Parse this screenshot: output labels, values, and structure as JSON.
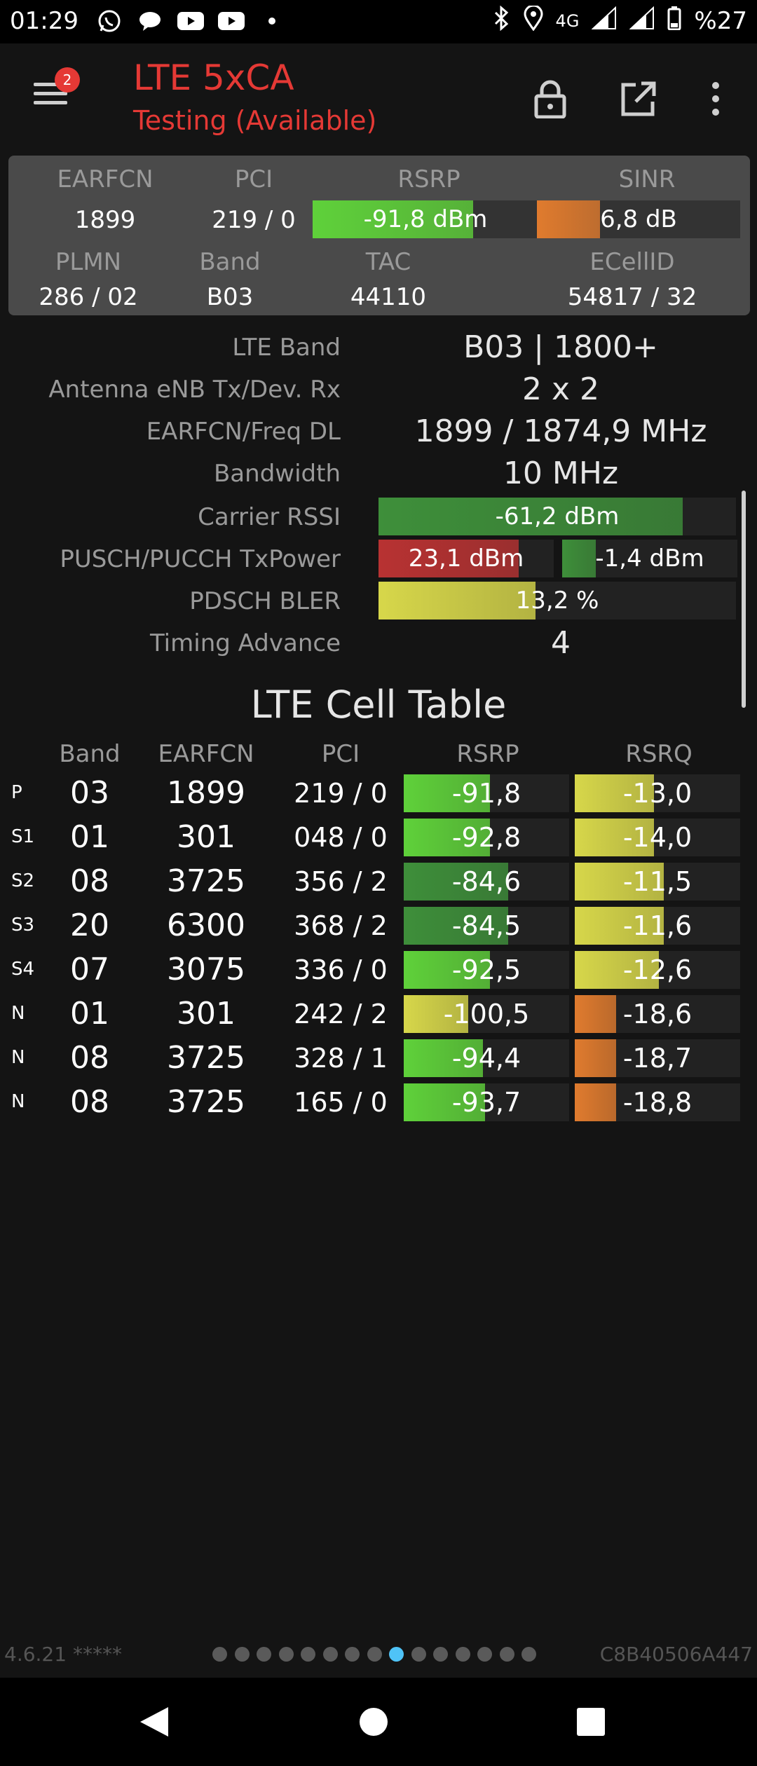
{
  "status_bar": {
    "time": "01:29",
    "network": "4G",
    "battery": "%27",
    "notification_icons": [
      "whatsapp-icon",
      "chat-bubble-icon",
      "youtube-icon",
      "youtube-icon",
      "more-notifications-dot"
    ],
    "system_icons": [
      "bluetooth-icon",
      "location-icon",
      "signal-icon",
      "signal-icon",
      "battery-icon"
    ]
  },
  "app_bar": {
    "title": "LTE 5xCA",
    "subtitle": "Testing (Available)",
    "badge": "2",
    "icons": [
      "menu-icon",
      "lock-icon",
      "open-external-icon",
      "more-vert-icon"
    ],
    "accent": "#e53935"
  },
  "summary": {
    "headers": [
      "EARFCN",
      "PCI",
      "RSRP",
      "SINR"
    ],
    "earfcn": "1899",
    "pci": "219 / 0",
    "rsrp": {
      "text": "-91,8 dBm",
      "level": 0.71,
      "color": "#5fd13a"
    },
    "sinr": {
      "text": "6,8 dB",
      "level": 0.31,
      "color": "#e07b2e"
    },
    "headers2": [
      "PLMN",
      "Band",
      "TAC",
      "ECellID"
    ],
    "plmn": "286 / 02",
    "band": "B03",
    "tac": "44110",
    "ecellid": "54817 / 32"
  },
  "details": [
    {
      "label": "LTE Band",
      "value": "B03 | 1800+"
    },
    {
      "label": "Antenna eNB Tx/Dev. Rx",
      "value": "2 x 2"
    },
    {
      "label": "EARFCN/Freq DL",
      "value": "1899 / 1874,9 MHz"
    },
    {
      "label": "Bandwidth",
      "value": "10 MHz"
    },
    {
      "label": "Carrier RSSI",
      "bar": {
        "text": "-61,2 dBm",
        "level": 0.85,
        "color": "#3e8f3a"
      }
    },
    {
      "label": "PUSCH/PUCCH TxPower",
      "bar": {
        "text": "23,1 dBm",
        "level": 0.8,
        "color": "#b83232"
      },
      "bar2": {
        "text": "-1,4 dBm",
        "level": 0.19,
        "color": "#3e8f3a"
      }
    },
    {
      "label": "PDSCH BLER",
      "bar": {
        "text": "13,2 %",
        "level": 0.44,
        "color": "#d7d74a"
      }
    },
    {
      "label": "Timing Advance",
      "value": "4"
    }
  ],
  "cell_table": {
    "title": "LTE Cell Table",
    "columns": [
      "Band",
      "EARFCN",
      "PCI",
      "RSRP",
      "RSRQ"
    ],
    "rows": [
      {
        "type": "P",
        "band": "03",
        "earfcn": "1899",
        "pci": "219 / 0",
        "rsrp": "-91,8",
        "rsrp_level": 0.52,
        "rsrp_color": "#5fd13a",
        "rsrq": "-13,0",
        "rsrq_level": 0.48,
        "rsrq_color": "#d7d74a"
      },
      {
        "type": "S1",
        "band": "01",
        "earfcn": "301",
        "pci": "048 / 0",
        "rsrp": "-92,8",
        "rsrp_level": 0.52,
        "rsrp_color": "#5fd13a",
        "rsrq": "-14,0",
        "rsrq_level": 0.48,
        "rsrq_color": "#d7d74a"
      },
      {
        "type": "S2",
        "band": "08",
        "earfcn": "3725",
        "pci": "356 / 2",
        "rsrp": "-84,6",
        "rsrp_level": 0.63,
        "rsrp_color": "#3e8f3a",
        "rsrq": "-11,5",
        "rsrq_level": 0.54,
        "rsrq_color": "#d7d74a"
      },
      {
        "type": "S3",
        "band": "20",
        "earfcn": "6300",
        "pci": "368 / 2",
        "rsrp": "-84,5",
        "rsrp_level": 0.63,
        "rsrp_color": "#3e8f3a",
        "rsrq": "-11,6",
        "rsrq_level": 0.54,
        "rsrq_color": "#d7d74a"
      },
      {
        "type": "S4",
        "band": "07",
        "earfcn": "3075",
        "pci": "336 / 0",
        "rsrp": "-92,5",
        "rsrp_level": 0.52,
        "rsrp_color": "#5fd13a",
        "rsrq": "-12,6",
        "rsrq_level": 0.51,
        "rsrq_color": "#d7d74a"
      },
      {
        "type": "N",
        "band": "01",
        "earfcn": "301",
        "pci": "242 / 2",
        "rsrp": "-100,5",
        "rsrp_level": 0.39,
        "rsrp_color": "#d7d74a",
        "rsrq": "-18,6",
        "rsrq_level": 0.25,
        "rsrq_color": "#e07b2e"
      },
      {
        "type": "N",
        "band": "08",
        "earfcn": "3725",
        "pci": "328 / 1",
        "rsrp": "-94,4",
        "rsrp_level": 0.48,
        "rsrp_color": "#5fd13a",
        "rsrq": "-18,7",
        "rsrq_level": 0.25,
        "rsrq_color": "#e07b2e"
      },
      {
        "type": "N",
        "band": "08",
        "earfcn": "3725",
        "pci": "165 / 0",
        "rsrp": "-93,7",
        "rsrp_level": 0.49,
        "rsrp_color": "#5fd13a",
        "rsrq": "-18,8",
        "rsrq_level": 0.25,
        "rsrq_color": "#e07b2e"
      }
    ]
  },
  "footer": {
    "version": "4.6.21 *****",
    "serial": "C8B40506A447",
    "page_count": 15,
    "active_page": 8
  },
  "nav_bar": {
    "icons": [
      "back-icon",
      "home-icon",
      "recents-icon"
    ]
  }
}
